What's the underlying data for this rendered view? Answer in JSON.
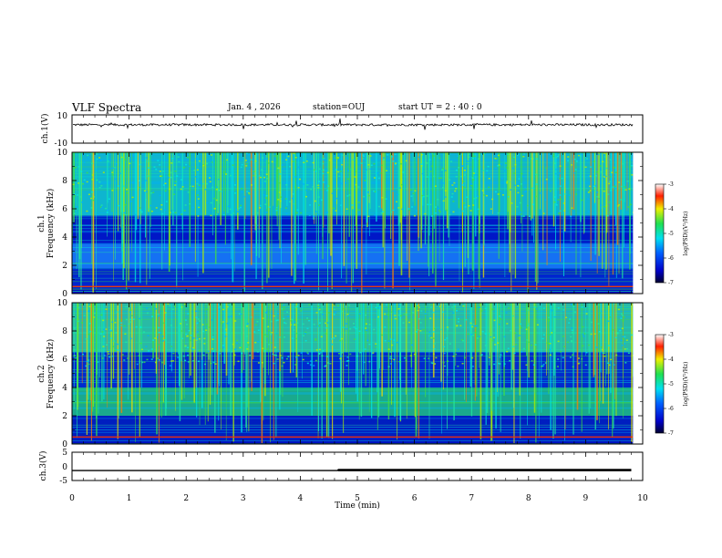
{
  "header": {
    "title": "VLF Spectra",
    "date": "Jan. 4 , 2026",
    "station": "station=OUJ",
    "start": "start UT = 2 : 40 : 0"
  },
  "chart_data": [
    {
      "type": "line",
      "title": "ch.1(V)",
      "ylabel": "ch.1(V)",
      "ylim": [
        -10,
        10
      ],
      "yticks": [
        "10",
        "-10"
      ],
      "description_value": "waveform around +3 V",
      "level": 3
    },
    {
      "type": "heatmap",
      "ylabel_channel": "ch.1",
      "ylabel": "Frequency (kHz)",
      "ylim": [
        0,
        10
      ],
      "yticks": [
        "0",
        "2",
        "4",
        "6",
        "8",
        "10"
      ],
      "colorbar": {
        "label": "log(PSD)(V²/Hz)",
        "range": [
          -7,
          -3
        ],
        "ticks": [
          "-3",
          "-4",
          "-5",
          "-6",
          "-7"
        ]
      }
    },
    {
      "type": "heatmap",
      "ylabel_channel": "ch.2",
      "ylabel": "Frequency (kHz)",
      "ylim": [
        0,
        10
      ],
      "yticks": [
        "0",
        "2",
        "4",
        "6",
        "8",
        "10"
      ],
      "colorbar": {
        "label": "log(PSD)(V²/Hz)",
        "range": [
          -7,
          -3
        ],
        "ticks": [
          "-3",
          "-4",
          "-5",
          "-6",
          "-7"
        ]
      }
    },
    {
      "type": "line",
      "title": "ch.3(V)",
      "ylabel": "ch.3(V)",
      "ylim": [
        -5,
        5
      ],
      "yticks": [
        "5",
        "0",
        "-5"
      ],
      "x": [
        0,
        4.65,
        4.66,
        9.8
      ],
      "y": [
        -1.5,
        -1.5,
        -1.3,
        -1.3
      ]
    }
  ],
  "xaxis": {
    "label": "Time (min)",
    "range": [
      0,
      10
    ],
    "ticks": [
      "0",
      "1",
      "2",
      "3",
      "4",
      "5",
      "6",
      "7",
      "8",
      "9",
      "10"
    ]
  }
}
